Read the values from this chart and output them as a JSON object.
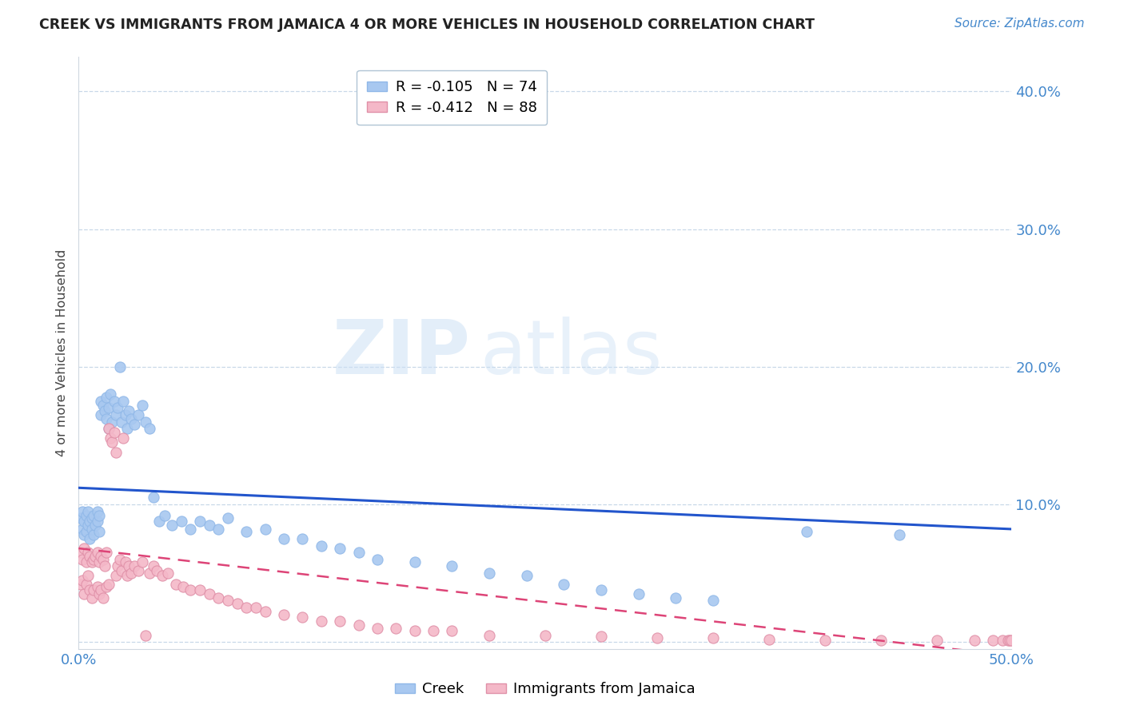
{
  "title": "CREEK VS IMMIGRANTS FROM JAMAICA 4 OR MORE VEHICLES IN HOUSEHOLD CORRELATION CHART",
  "source": "Source: ZipAtlas.com",
  "ylabel": "4 or more Vehicles in Household",
  "xlim": [
    0.0,
    0.5
  ],
  "ylim": [
    -0.005,
    0.425
  ],
  "yticks": [
    0.0,
    0.1,
    0.2,
    0.3,
    0.4
  ],
  "ytick_labels": [
    "",
    "10.0%",
    "20.0%",
    "30.0%",
    "40.0%"
  ],
  "xticks": [
    0.0,
    0.1,
    0.2,
    0.3,
    0.4,
    0.5
  ],
  "xtick_labels": [
    "0.0%",
    "",
    "",
    "",
    "",
    "50.0%"
  ],
  "legend1_label": "R = -0.105   N = 74",
  "legend2_label": "R = -0.412   N = 88",
  "scatter1_color": "#a8c8f0",
  "scatter2_color": "#f4b8c8",
  "trend1_color": "#2255cc",
  "trend2_color": "#dd4477",
  "creek_label": "Creek",
  "jamaica_label": "Immigrants from Jamaica",
  "watermark_zip": "ZIP",
  "watermark_atlas": "atlas",
  "title_color": "#222222",
  "axis_color": "#4488cc",
  "grid_color": "#c8d8e8",
  "creek_x": [
    0.001,
    0.002,
    0.002,
    0.003,
    0.003,
    0.004,
    0.004,
    0.005,
    0.005,
    0.006,
    0.006,
    0.007,
    0.007,
    0.008,
    0.008,
    0.009,
    0.01,
    0.01,
    0.011,
    0.011,
    0.012,
    0.012,
    0.013,
    0.014,
    0.015,
    0.015,
    0.016,
    0.016,
    0.017,
    0.018,
    0.019,
    0.02,
    0.021,
    0.022,
    0.023,
    0.024,
    0.025,
    0.026,
    0.027,
    0.028,
    0.03,
    0.032,
    0.034,
    0.036,
    0.038,
    0.04,
    0.043,
    0.046,
    0.05,
    0.055,
    0.06,
    0.065,
    0.07,
    0.075,
    0.08,
    0.09,
    0.1,
    0.11,
    0.12,
    0.13,
    0.14,
    0.15,
    0.16,
    0.18,
    0.2,
    0.22,
    0.24,
    0.26,
    0.28,
    0.3,
    0.32,
    0.34,
    0.39,
    0.44
  ],
  "creek_y": [
    0.09,
    0.095,
    0.082,
    0.088,
    0.078,
    0.092,
    0.08,
    0.085,
    0.095,
    0.075,
    0.088,
    0.082,
    0.09,
    0.078,
    0.092,
    0.085,
    0.088,
    0.095,
    0.08,
    0.092,
    0.175,
    0.165,
    0.172,
    0.168,
    0.178,
    0.162,
    0.17,
    0.155,
    0.18,
    0.16,
    0.175,
    0.165,
    0.17,
    0.2,
    0.16,
    0.175,
    0.165,
    0.155,
    0.168,
    0.162,
    0.158,
    0.165,
    0.172,
    0.16,
    0.155,
    0.105,
    0.088,
    0.092,
    0.085,
    0.088,
    0.082,
    0.088,
    0.085,
    0.082,
    0.09,
    0.08,
    0.082,
    0.075,
    0.075,
    0.07,
    0.068,
    0.065,
    0.06,
    0.058,
    0.055,
    0.05,
    0.048,
    0.042,
    0.038,
    0.035,
    0.032,
    0.03,
    0.08,
    0.078
  ],
  "jamaica_x": [
    0.001,
    0.001,
    0.002,
    0.002,
    0.003,
    0.003,
    0.004,
    0.004,
    0.005,
    0.005,
    0.006,
    0.006,
    0.007,
    0.007,
    0.008,
    0.008,
    0.009,
    0.01,
    0.01,
    0.011,
    0.011,
    0.012,
    0.012,
    0.013,
    0.013,
    0.014,
    0.015,
    0.015,
    0.016,
    0.016,
    0.017,
    0.018,
    0.019,
    0.02,
    0.02,
    0.021,
    0.022,
    0.023,
    0.024,
    0.025,
    0.026,
    0.027,
    0.028,
    0.03,
    0.032,
    0.034,
    0.036,
    0.038,
    0.04,
    0.042,
    0.045,
    0.048,
    0.052,
    0.056,
    0.06,
    0.065,
    0.07,
    0.075,
    0.08,
    0.085,
    0.09,
    0.095,
    0.1,
    0.11,
    0.12,
    0.13,
    0.14,
    0.15,
    0.16,
    0.17,
    0.18,
    0.19,
    0.2,
    0.22,
    0.25,
    0.28,
    0.31,
    0.34,
    0.37,
    0.4,
    0.43,
    0.46,
    0.48,
    0.49,
    0.495,
    0.498,
    0.499,
    0.5
  ],
  "jamaica_y": [
    0.065,
    0.042,
    0.06,
    0.045,
    0.068,
    0.035,
    0.058,
    0.042,
    0.065,
    0.048,
    0.062,
    0.038,
    0.058,
    0.032,
    0.06,
    0.038,
    0.062,
    0.065,
    0.04,
    0.058,
    0.035,
    0.062,
    0.038,
    0.06,
    0.032,
    0.055,
    0.065,
    0.04,
    0.155,
    0.042,
    0.148,
    0.145,
    0.152,
    0.138,
    0.048,
    0.055,
    0.06,
    0.052,
    0.148,
    0.058,
    0.048,
    0.055,
    0.05,
    0.055,
    0.052,
    0.058,
    0.005,
    0.05,
    0.055,
    0.052,
    0.048,
    0.05,
    0.042,
    0.04,
    0.038,
    0.038,
    0.035,
    0.032,
    0.03,
    0.028,
    0.025,
    0.025,
    0.022,
    0.02,
    0.018,
    0.015,
    0.015,
    0.012,
    0.01,
    0.01,
    0.008,
    0.008,
    0.008,
    0.005,
    0.005,
    0.004,
    0.003,
    0.003,
    0.002,
    0.001,
    0.001,
    0.001,
    0.001,
    0.001,
    0.001,
    0.001,
    0.001,
    0.001
  ],
  "creek_trend_x": [
    0.0,
    0.5
  ],
  "creek_trend_y": [
    0.112,
    0.082
  ],
  "jamaica_trend_x": [
    0.0,
    0.5
  ],
  "jamaica_trend_y": [
    0.068,
    -0.01
  ]
}
